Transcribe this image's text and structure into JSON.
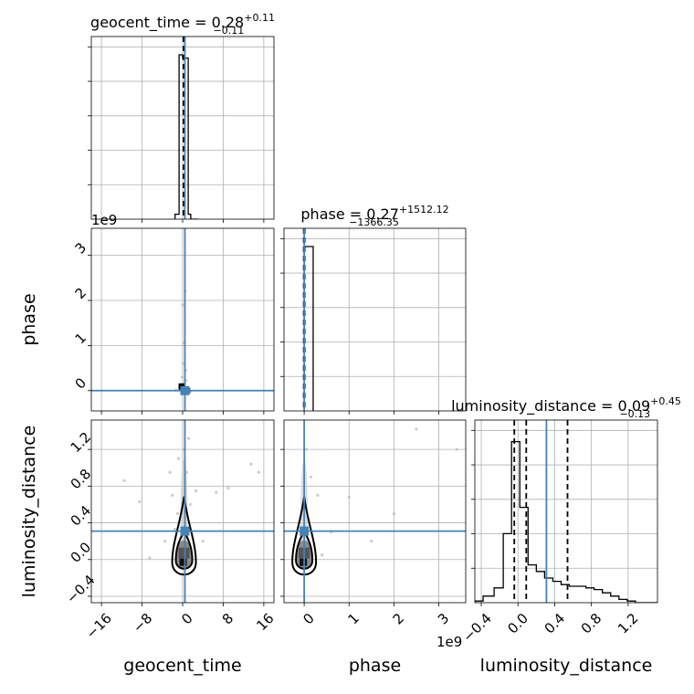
{
  "chart_data": [
    {
      "type": "corner",
      "parameters": [
        "geocent_time",
        "phase",
        "luminosity_distance"
      ],
      "colors": {
        "truth": "#4682b4",
        "hist": "#000000",
        "grid": "#b0b0b0"
      },
      "titles": [
        {
          "param": "geocent_time",
          "name": "geocent_time",
          "value": "0.28",
          "plus": "+0.11",
          "minus": "−0.11"
        },
        {
          "param": "phase",
          "name": "phase",
          "value": "0.27",
          "plus": "+1512.12",
          "minus": "−1366.35"
        },
        {
          "param": "luminosity_distance",
          "name": "luminosity_distance",
          "value": "0.09",
          "plus": "+0.45",
          "minus": "−0.13"
        }
      ],
      "axis_labels": {
        "x": [
          "geocent_time",
          "phase",
          "luminosity_distance"
        ],
        "y": [
          "phase",
          "luminosity_distance"
        ]
      },
      "ranges": {
        "geocent_time": [
          -18,
          18
        ],
        "phase": [
          -0.45,
          3.6
        ],
        "luminosity_distance": [
          -0.47,
          1.52
        ]
      },
      "ticks": {
        "geocent_time": {
          "values": [
            -16,
            -8,
            0,
            8,
            16
          ],
          "labels": [
            "−16",
            "−8",
            "0",
            "8",
            "16"
          ]
        },
        "phase": {
          "values": [
            0,
            1,
            2,
            3
          ],
          "labels": [
            "0",
            "1",
            "2",
            "3"
          ]
        },
        "luminosity_distance": {
          "values": [
            -0.4,
            0.0,
            0.4,
            0.8,
            1.2
          ],
          "labels": [
            "−0.4",
            "0.0",
            "0.4",
            "0.8",
            "1.2"
          ]
        }
      },
      "offset_text": {
        "phase": "1e9",
        "luminosity_distance": "1e9"
      },
      "truths": {
        "geocent_time": 0.45,
        "phase": 0.0,
        "luminosity_distance": 0.31
      },
      "quantiles": {
        "geocent_time": [
          0.17,
          0.28,
          0.39
        ],
        "phase": [
          -0.01,
          0.0,
          0.01
        ],
        "luminosity_distance": [
          -0.04,
          0.09,
          0.54
        ]
      },
      "histograms": {
        "geocent_time": {
          "edges": [
            -1.5,
            -0.7,
            0.0,
            1.1,
            1.6,
            3.0
          ],
          "heights": [
            0.03,
            1.0,
            0.98,
            0.03,
            0.0
          ]
        },
        "phase": {
          "edges": [
            0.0,
            0.2
          ],
          "heights": [
            1.0
          ]
        },
        "luminosity_distance": {
          "edges": [
            -0.47,
            -0.38,
            -0.26,
            -0.16,
            -0.07,
            0.02,
            0.11,
            0.2,
            0.29,
            0.38,
            0.47,
            0.56,
            0.65,
            0.74,
            0.83,
            0.92,
            1.01,
            1.1,
            1.19,
            1.28,
            1.52
          ],
          "heights": [
            0.01,
            0.04,
            0.09,
            0.42,
            0.98,
            0.58,
            0.23,
            0.19,
            0.15,
            0.13,
            0.11,
            0.1,
            0.1,
            0.09,
            0.08,
            0.06,
            0.04,
            0.02,
            0.01,
            0.0
          ]
        }
      },
      "scatter": {
        "geocent_time_vs_phase": [
          [
            -0.2,
            0.02
          ],
          [
            0.4,
            -0.03
          ],
          [
            0.9,
            0.05
          ],
          [
            -0.6,
            0.08
          ],
          [
            0.2,
            0.15
          ],
          [
            0.7,
            0.22
          ],
          [
            -0.1,
            0.3
          ],
          [
            0.3,
            1.05
          ],
          [
            0.0,
            1.9
          ],
          [
            0.5,
            2.2
          ],
          [
            -1.3,
            0.01
          ],
          [
            1.5,
            -0.02
          ],
          [
            0.1,
            0.6
          ],
          [
            0.6,
            0.45
          ]
        ],
        "geocent_time_vs_luminosity_distance": [
          [
            -11.5,
            0.86
          ],
          [
            -8.5,
            0.63
          ],
          [
            -2.5,
            0.95
          ],
          [
            -1.5,
            0.33
          ],
          [
            -0.8,
            1.1
          ],
          [
            0.3,
            1.2
          ],
          [
            1.2,
            1.32
          ],
          [
            2.6,
            0.75
          ],
          [
            6.6,
            0.73
          ],
          [
            13.5,
            1.04
          ],
          [
            -6.5,
            0.02
          ],
          [
            -1.0,
            0.5
          ],
          [
            1.5,
            0.6
          ],
          [
            4.0,
            0.2
          ],
          [
            9.0,
            0.78
          ],
          [
            15.0,
            0.95
          ],
          [
            -3.5,
            0.2
          ],
          [
            0.8,
            0.95
          ],
          [
            2.0,
            -0.12
          ],
          [
            -2.0,
            0.7
          ]
        ],
        "phase_vs_luminosity_distance": [
          [
            0.05,
            1.2
          ],
          [
            0.3,
            0.7
          ],
          [
            1.0,
            0.68
          ],
          [
            2.0,
            0.5
          ],
          [
            2.5,
            1.42
          ],
          [
            3.4,
            1.2
          ],
          [
            3.7,
            1.2
          ],
          [
            0.15,
            0.9
          ],
          [
            0.6,
            0.3
          ],
          [
            0.4,
            0.05
          ],
          [
            1.5,
            0.2
          ]
        ]
      }
    }
  ]
}
